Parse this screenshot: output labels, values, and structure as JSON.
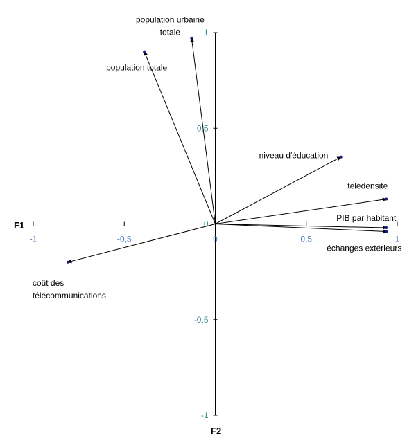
{
  "chart_data": {
    "type": "scatter",
    "subtype": "correlation-circle-vectors",
    "xlabel": "F1",
    "ylabel": "F2",
    "xlim": [
      -1,
      1
    ],
    "ylim": [
      -1,
      1
    ],
    "x_ticks": [
      "-1",
      "-0,5",
      "0",
      "0,5",
      "1"
    ],
    "y_ticks": [
      "1",
      "0,5",
      "0",
      "-0,5",
      "-1"
    ],
    "grid": false,
    "legend": "none",
    "colors": {
      "arrow": "#000000",
      "point": "#1a1a8c",
      "tick": "#4a7fc1"
    },
    "points": [
      {
        "name": "population urbaine totale",
        "lines": [
          "population urbaine",
          "totale"
        ],
        "x": -0.13,
        "y": 0.97
      },
      {
        "name": "population totale",
        "lines": [
          "population totale"
        ],
        "x": -0.39,
        "y": 0.9
      },
      {
        "name": "niveau d'éducation",
        "lines": [
          "niveau d'éducation"
        ],
        "x": 0.69,
        "y": 0.35
      },
      {
        "name": "télédensité",
        "lines": [
          "télédensité"
        ],
        "x": 0.94,
        "y": 0.13
      },
      {
        "name": "PIB par habitant",
        "lines": [
          "PIB par habitant"
        ],
        "x": 0.94,
        "y": -0.02
      },
      {
        "name": "échanges extérieurs",
        "lines": [
          "échanges extérieurs"
        ],
        "x": 0.94,
        "y": -0.04
      },
      {
        "name": "coût des télécommunications",
        "lines": [
          "coût des",
          "télécommunications"
        ],
        "x": -0.81,
        "y": -0.2
      }
    ]
  }
}
